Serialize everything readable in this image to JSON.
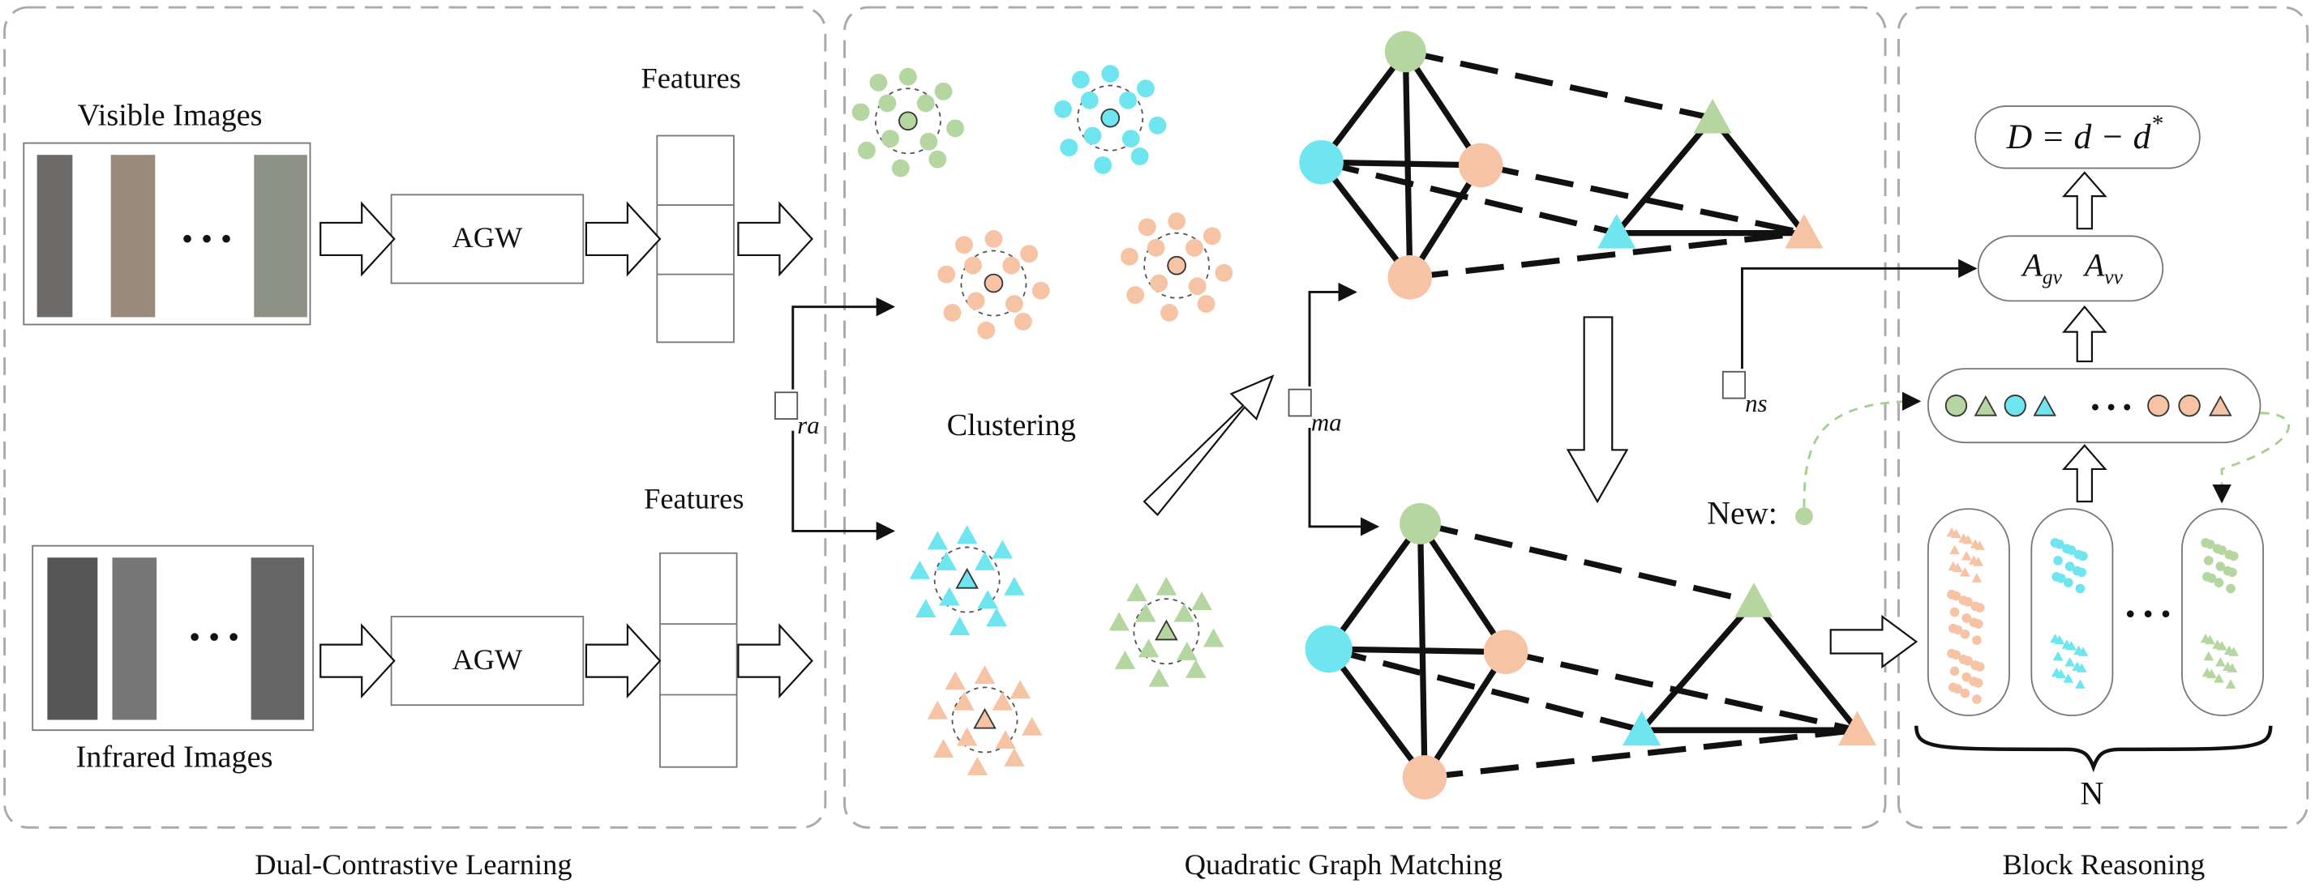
{
  "panels": [
    {
      "label": "Dual-Contrastive Learning"
    },
    {
      "label": "Quadratic Graph Matching"
    },
    {
      "label": "Block Reasoning"
    }
  ],
  "dual_contrastive": {
    "visible_label": "Visible Images",
    "infrared_label": "Infrared Images",
    "features_labels": [
      "Features",
      "Features"
    ],
    "encoder_labels": [
      "AGW",
      "AGW"
    ],
    "loss_subscript": "ra"
  },
  "graph_matching": {
    "clustering_label": "Clustering",
    "loss_subscripts": [
      "ma",
      "ns"
    ],
    "new_label": "New:"
  },
  "block_reasoning": {
    "formula": {
      "expression": "D = d − d",
      "superscript": "*"
    },
    "matrices": [
      {
        "base": "A",
        "sub": "gv"
      },
      {
        "base": "A",
        "sub": "vv"
      }
    ],
    "count_label": "N"
  }
}
